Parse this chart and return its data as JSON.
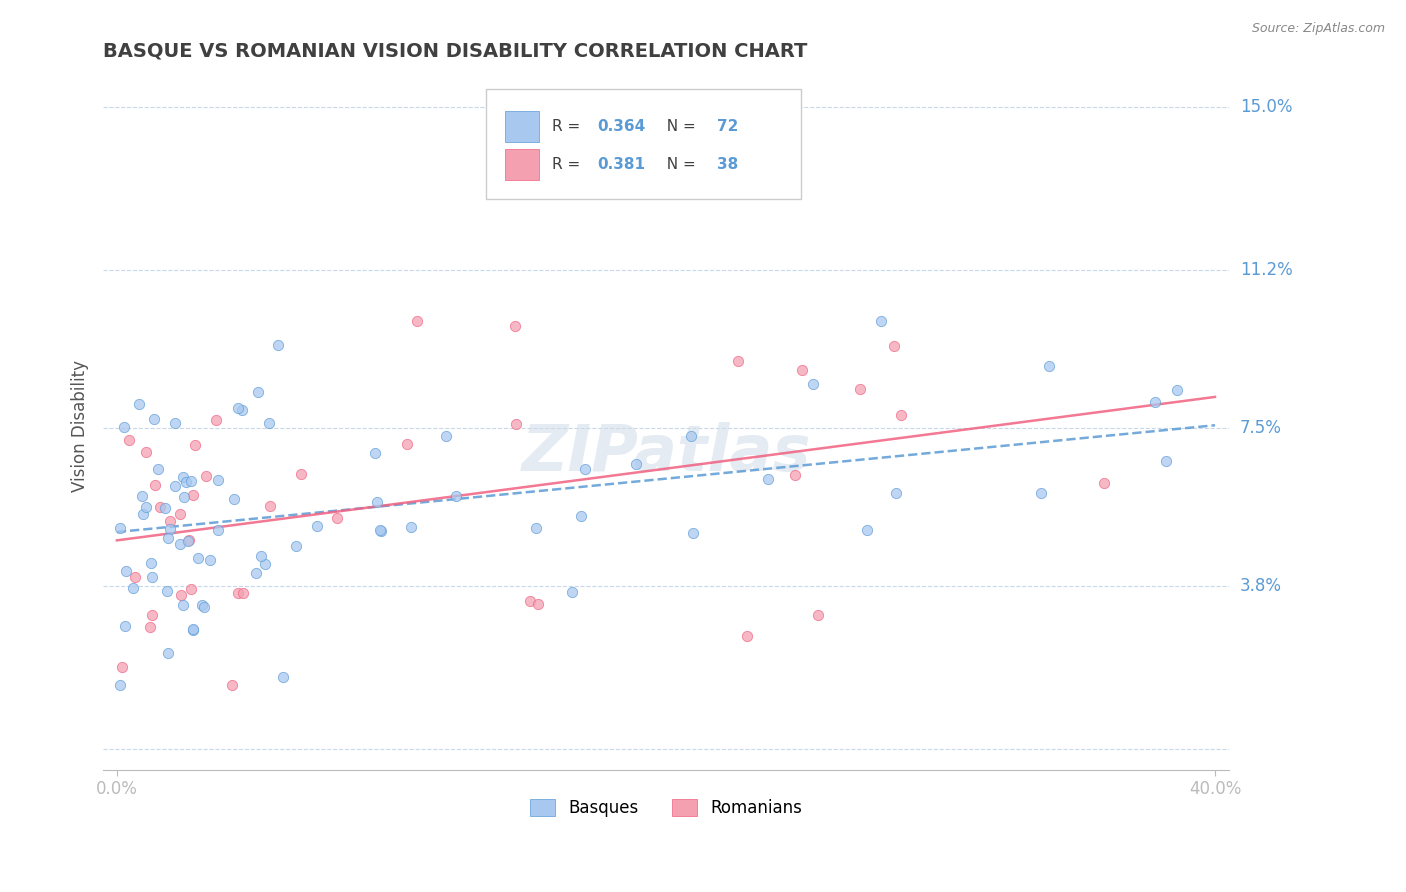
{
  "title": "BASQUE VS ROMANIAN VISION DISABILITY CORRELATION CHART",
  "source": "Source: ZipAtlas.com",
  "ylabel": "Vision Disability",
  "xlim": [
    0.0,
    0.4
  ],
  "ylim": [
    0.0,
    0.15
  ],
  "ytick_positions": [
    0.0,
    0.038,
    0.075,
    0.112,
    0.15
  ],
  "ytick_labels": [
    "",
    "3.8%",
    "7.5%",
    "11.2%",
    "15.0%"
  ],
  "xtick_positions": [
    0.0,
    0.4
  ],
  "xtick_labels": [
    "0.0%",
    "40.0%"
  ],
  "background_color": "#ffffff",
  "grid_color": "#c8d8e8",
  "title_color": "#404040",
  "accent_color": "#5b9bd5",
  "basque_face_color": "#a8c8f0",
  "basque_edge_color": "#5b9bd5",
  "romanian_face_color": "#f4a0b0",
  "romanian_edge_color": "#f06080",
  "basque_line_color": "#5b9bd5",
  "romanian_line_color": "#f06080",
  "basque_R": "0.364",
  "basque_N": "72",
  "romanian_R": "0.381",
  "romanian_N": "38",
  "watermark": "ZIPatlas",
  "watermark_color": "#d0dce8"
}
